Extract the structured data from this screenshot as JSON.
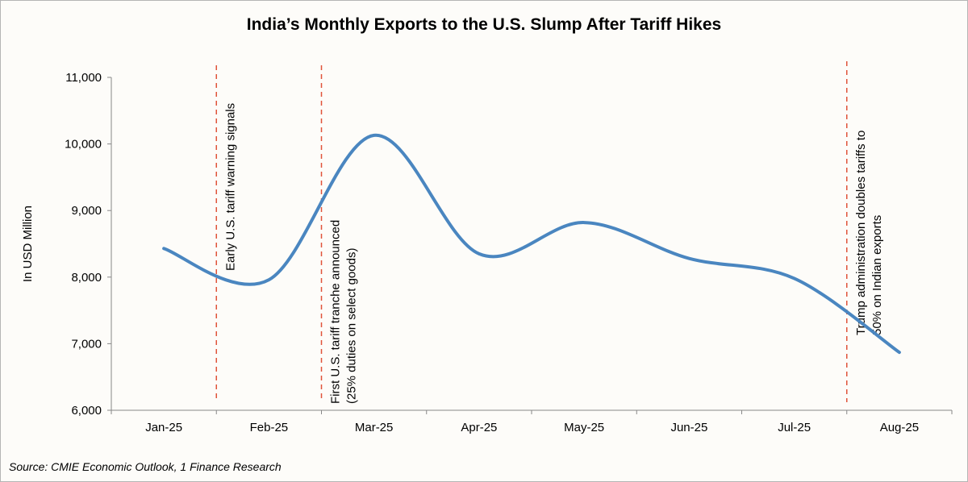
{
  "chart_data": {
    "type": "line",
    "title": "India’s Monthly Exports to the U.S. Slump After Tariff Hikes",
    "ylabel": "In USD Million",
    "xlabel": "",
    "categories": [
      "Jan-25",
      "Feb-25",
      "Mar-25",
      "Apr-25",
      "May-25",
      "Jun-25",
      "Jul-25",
      "Aug-25"
    ],
    "values": [
      8430,
      7960,
      10130,
      8350,
      8820,
      8280,
      7980,
      6870
    ],
    "ylim": [
      6000,
      11000
    ],
    "yticks": [
      "6,000",
      "7,000",
      "8,000",
      "9,000",
      "10,000",
      "11,000"
    ],
    "smooth": true,
    "grid": false,
    "line_color": "#4a86c0",
    "annotation_color": "#e0533a",
    "annotations": [
      {
        "between": [
          "Jan-25",
          "Feb-25"
        ],
        "lines": [
          "Early U.S. tariff warning signals"
        ]
      },
      {
        "between": [
          "Feb-25",
          "Mar-25"
        ],
        "lines": [
          "First U.S. tariff tranche announced",
          "(25% duties on select goods)"
        ]
      },
      {
        "between": [
          "Jul-25",
          "Aug-25"
        ],
        "lines": [
          "Trump administration doubles tariffs to",
          "50% on Indian exports"
        ]
      }
    ]
  },
  "source": "Source: CMIE Economic Outlook, 1 Finance Research"
}
